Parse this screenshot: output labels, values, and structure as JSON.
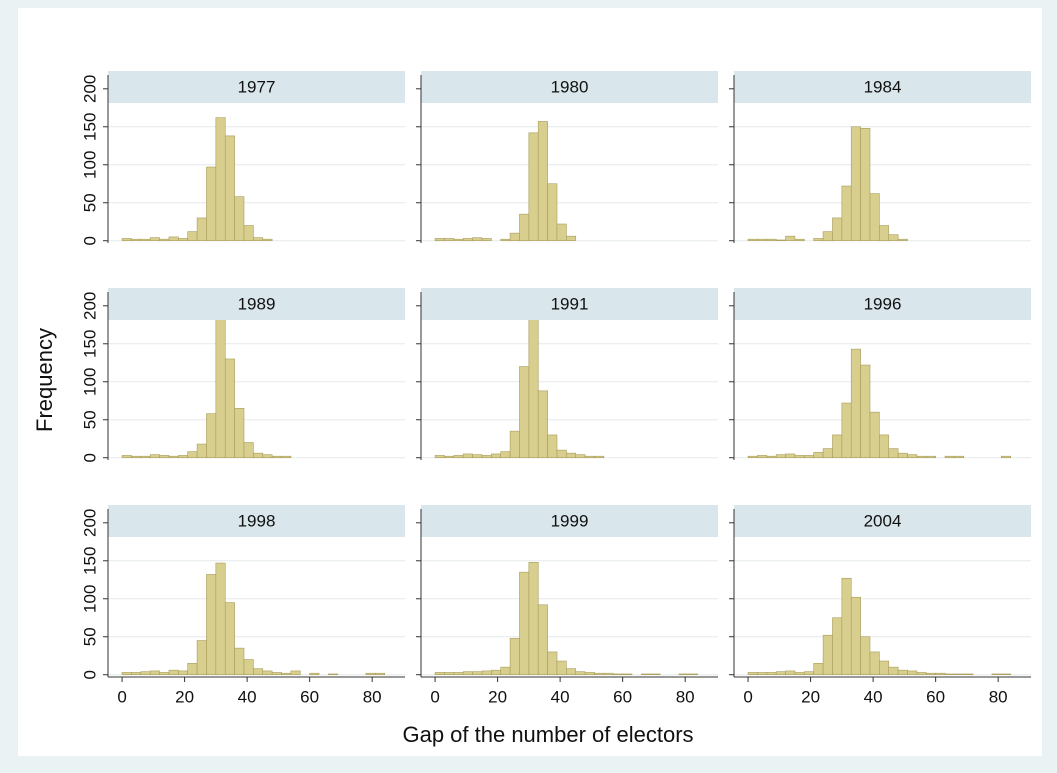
{
  "chart_data": {
    "type": "histogram",
    "xlabel": "Gap of the number of electors",
    "ylabel": "Frequency",
    "color": "#d8cf8f",
    "edgecolor": "#a89c5c",
    "grid": true,
    "xlim": [
      -4.5,
      90.5
    ],
    "ylim": [
      -3,
      205
    ],
    "xticks": [
      0,
      20,
      40,
      60,
      80
    ],
    "yticks": [
      0,
      50,
      100,
      150,
      200
    ],
    "bins": [
      0,
      3,
      6,
      9,
      12,
      15,
      18,
      21,
      24,
      27,
      30,
      33,
      36,
      39,
      42,
      45,
      48,
      51,
      54,
      57,
      60,
      63,
      66,
      69,
      72,
      75,
      78,
      81,
      84,
      87,
      90
    ],
    "facets": [
      {
        "title": "1977",
        "values": [
          3,
          2,
          2,
          4,
          2,
          5,
          3,
          12,
          30,
          97,
          162,
          138,
          58,
          20,
          4,
          2,
          0,
          0,
          0,
          0,
          0,
          0,
          0,
          0,
          0,
          0,
          0,
          0,
          0,
          0
        ]
      },
      {
        "title": "1980",
        "values": [
          3,
          3,
          2,
          3,
          4,
          3,
          0,
          2,
          10,
          35,
          142,
          157,
          75,
          22,
          6,
          0,
          0,
          0,
          0,
          0,
          0,
          0,
          0,
          0,
          0,
          0,
          0,
          0,
          0,
          0
        ]
      },
      {
        "title": "1984",
        "values": [
          2,
          2,
          2,
          1,
          6,
          2,
          0,
          3,
          12,
          30,
          72,
          150,
          148,
          62,
          20,
          8,
          2,
          0,
          0,
          0,
          0,
          0,
          0,
          0,
          0,
          0,
          0,
          0,
          0,
          0
        ]
      },
      {
        "title": "1989",
        "values": [
          3,
          2,
          2,
          4,
          3,
          2,
          3,
          8,
          18,
          58,
          182,
          130,
          65,
          20,
          6,
          4,
          2,
          2,
          0,
          0,
          0,
          0,
          0,
          0,
          0,
          0,
          0,
          0,
          0,
          0
        ]
      },
      {
        "title": "1991",
        "values": [
          3,
          2,
          3,
          5,
          4,
          3,
          5,
          8,
          35,
          120,
          193,
          88,
          30,
          10,
          6,
          4,
          2,
          2,
          0,
          0,
          0,
          0,
          0,
          0,
          0,
          0,
          0,
          0,
          0,
          0
        ]
      },
      {
        "title": "1996",
        "values": [
          2,
          3,
          2,
          4,
          5,
          3,
          3,
          7,
          12,
          30,
          72,
          143,
          122,
          60,
          30,
          12,
          6,
          4,
          2,
          2,
          0,
          2,
          2,
          0,
          0,
          0,
          0,
          2,
          0,
          0
        ]
      },
      {
        "title": "1998",
        "values": [
          3,
          3,
          4,
          5,
          3,
          6,
          5,
          15,
          45,
          132,
          147,
          95,
          35,
          20,
          8,
          5,
          3,
          2,
          5,
          0,
          2,
          0,
          1,
          0,
          0,
          0,
          2,
          2,
          0,
          0
        ]
      },
      {
        "title": "1999",
        "values": [
          3,
          3,
          3,
          4,
          4,
          5,
          6,
          10,
          48,
          135,
          148,
          92,
          30,
          18,
          8,
          4,
          3,
          2,
          2,
          1,
          1,
          0,
          1,
          1,
          0,
          0,
          1,
          1,
          0,
          0
        ]
      },
      {
        "title": "2004",
        "values": [
          3,
          3,
          3,
          4,
          5,
          3,
          4,
          15,
          52,
          75,
          127,
          102,
          50,
          30,
          18,
          10,
          6,
          5,
          3,
          2,
          2,
          1,
          1,
          1,
          0,
          0,
          1,
          1,
          0,
          0
        ]
      }
    ]
  }
}
